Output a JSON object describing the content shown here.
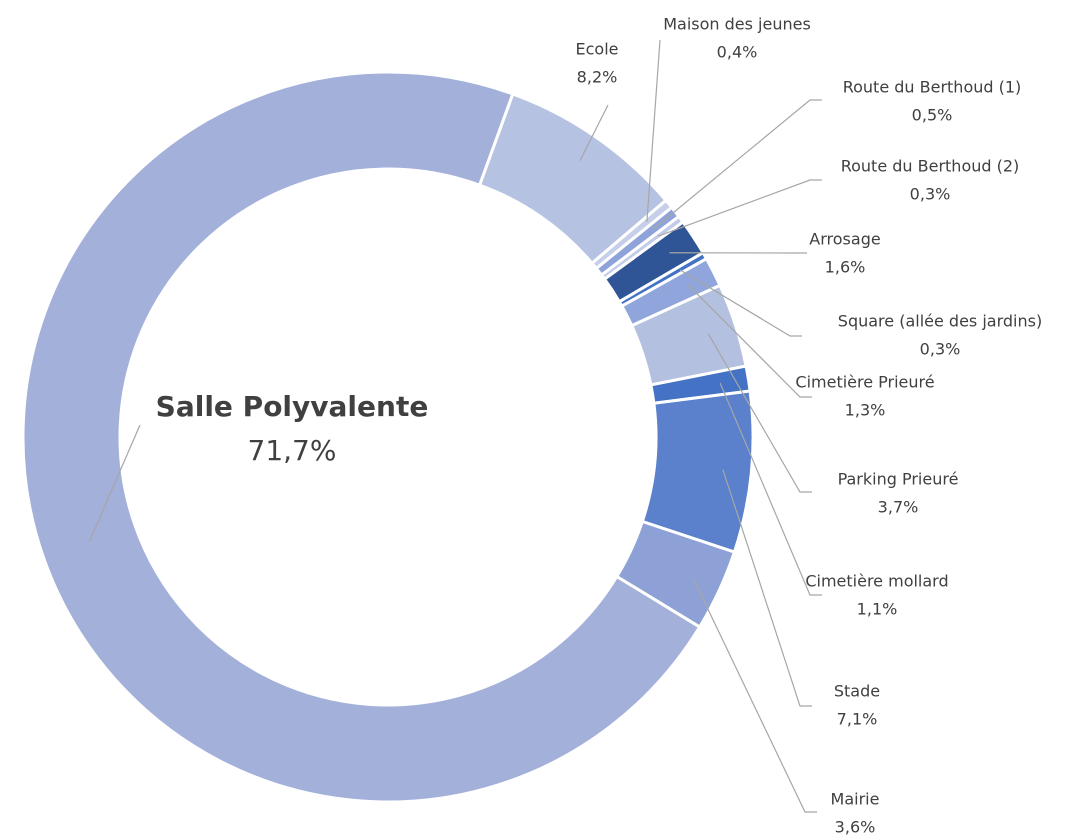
{
  "chart_data": {
    "type": "donut",
    "categories": [
      "Salle Polyvalente",
      "Ecole",
      "Maison des jeunes",
      "Route du Berthoud (1)",
      "Route du Berthoud (2)",
      "Arrosage",
      "Square (allée des jardins)",
      "Cimetière Prieuré",
      "Parking Prieuré",
      "Cimetière mollard",
      "Stade",
      "Mairie"
    ],
    "values": [
      71.7,
      8.2,
      0.4,
      0.5,
      0.3,
      1.6,
      0.3,
      1.3,
      3.7,
      1.1,
      7.1,
      3.6
    ],
    "value_labels": [
      "71,7%",
      "8,2%",
      "0,4%",
      "0,5%",
      "0,3%",
      "1,6%",
      "0,3%",
      "1,3%",
      "3,7%",
      "1,1%",
      "7,1%",
      "3,6%"
    ],
    "colors": [
      "#a2b0da",
      "#b6c2e2",
      "#c6cfea",
      "#8ea3d9",
      "#c2cbe8",
      "#2f5597",
      "#4472c4",
      "#8fa5db",
      "#b4c0e0",
      "#4472c4",
      "#5b80cc",
      "#8ea1d6"
    ]
  }
}
